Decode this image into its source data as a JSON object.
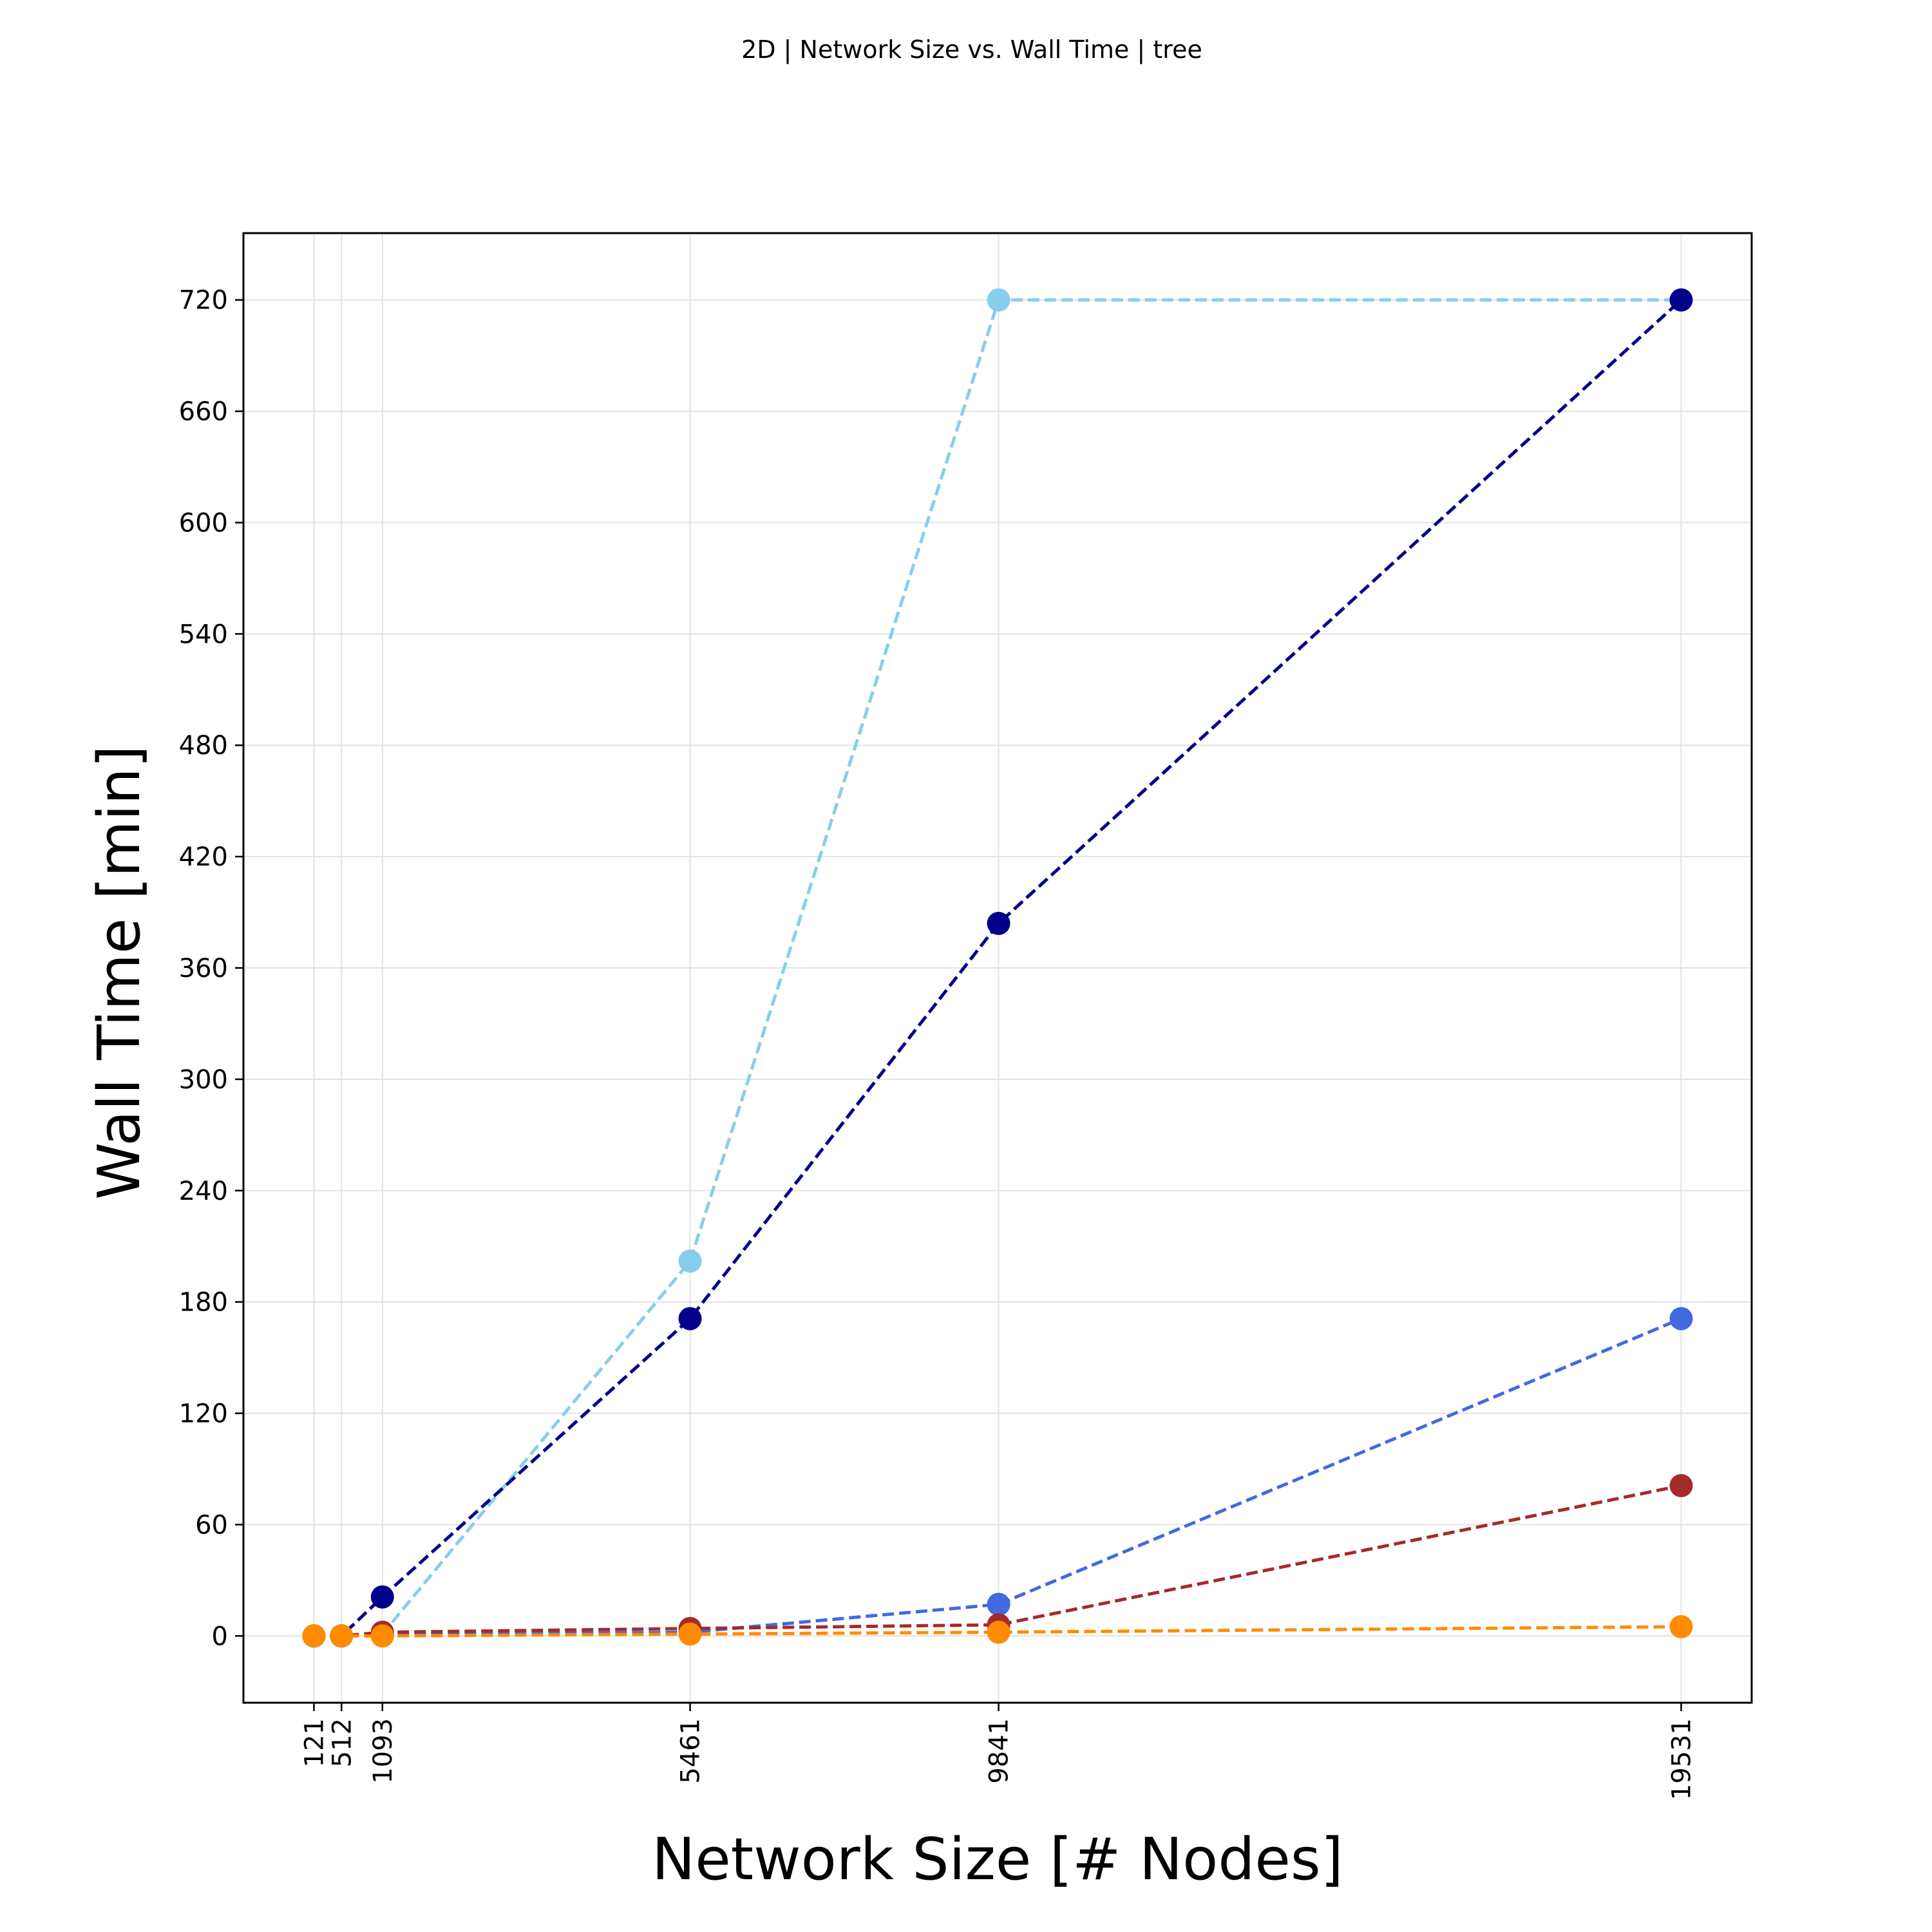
{
  "chart_data": {
    "type": "line",
    "title": "2D | Network Size vs. Wall Time | tree",
    "xlabel": "Network Size [# Nodes]",
    "ylabel": "Wall Time [min]",
    "x": [
      121,
      512,
      1093,
      5461,
      9841,
      19531
    ],
    "x_tick_labels": [
      "121",
      "512",
      "1093",
      "5461",
      "9841",
      "19531"
    ],
    "xlim": [
      -880,
      20532
    ],
    "yticks": [
      0,
      60,
      120,
      180,
      240,
      300,
      360,
      420,
      480,
      540,
      600,
      660,
      720
    ],
    "ylim": [
      -36,
      756
    ],
    "grid": true,
    "series": [
      {
        "color": "#87CEEB",
        "points": [
          [
            121,
            0
          ],
          [
            512,
            0
          ],
          [
            1093,
            1
          ],
          [
            5461,
            202
          ],
          [
            9841,
            720
          ],
          [
            19531,
            720
          ]
        ]
      },
      {
        "color": "#00008B",
        "points": [
          [
            121,
            0
          ],
          [
            512,
            0
          ],
          [
            1093,
            21
          ],
          [
            5461,
            171
          ],
          [
            9841,
            384
          ],
          [
            19531,
            720
          ]
        ]
      },
      {
        "color": "#4169E1",
        "points": [
          [
            121,
            0
          ],
          [
            512,
            0
          ],
          [
            1093,
            1
          ],
          [
            5461,
            2
          ],
          [
            9841,
            17
          ],
          [
            19531,
            171
          ]
        ]
      },
      {
        "color": "#A52A2A",
        "points": [
          [
            121,
            0
          ],
          [
            512,
            0
          ],
          [
            1093,
            2
          ],
          [
            5461,
            4
          ],
          [
            9841,
            6
          ],
          [
            19531,
            81
          ]
        ]
      },
      {
        "color": "#FF8C00",
        "points": [
          [
            121,
            0
          ],
          [
            512,
            0
          ],
          [
            1093,
            0
          ],
          [
            5461,
            1
          ],
          [
            9841,
            2
          ],
          [
            19531,
            5
          ]
        ]
      }
    ]
  }
}
